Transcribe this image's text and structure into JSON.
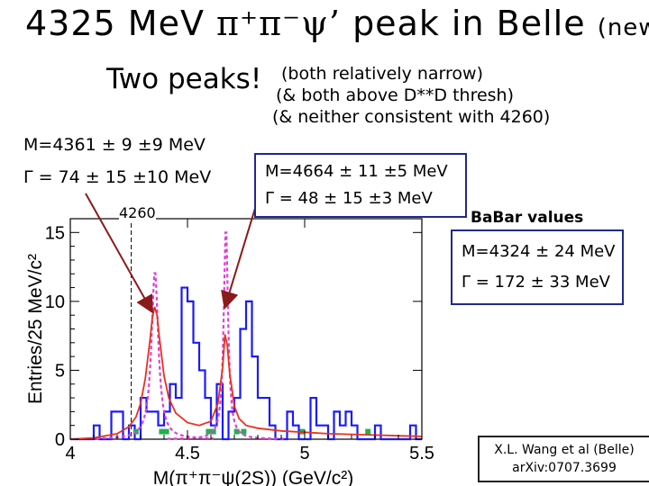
{
  "slide": {
    "title_a": "4325 MeV ",
    "title_sym": "π⁺π⁻ψ’",
    "title_b": " peak in Belle ",
    "title_new": "(new)",
    "headline": "Two peaks!",
    "notes": [
      "(both relatively narrow)",
      "(& both above D**D thresh)",
      "(& neither consistent with 4260)"
    ],
    "peak1_mass": "M=4361 ± 9 ±9 MeV",
    "peak1_width": "Γ = 74 ± 15 ±10  MeV",
    "peak2_mass": "M=4664 ± 11 ±5 MeV",
    "peak2_width": "Γ = 48 ± 15 ±3  MeV",
    "babar_title": "BaBar values",
    "babar_mass": "M=4324 ± 24 MeV",
    "babar_width": "Γ = 172 ± 33 MeV",
    "marker_4260": "4260",
    "citation_1": "X.L. Wang et al (Belle)",
    "citation_2": "arXiv:0707.3699"
  },
  "colors": {
    "box_border": "#1f2a8a",
    "histogram": "#1a1aff",
    "fit": "#e8321e",
    "peaks_dashed": "#e040d8",
    "background": "#22b14c",
    "arrows": "#8b1a1a"
  },
  "chart_data": {
    "type": "line",
    "xlabel": "M(π⁺π⁻ψ(2S)) (GeV/c²)",
    "ylabel": "Entries/25 MeV/c²",
    "xlim": [
      4.0,
      5.5
    ],
    "ylim": [
      0,
      16
    ],
    "xticks": [
      "4",
      "4.5",
      "5",
      "5.5"
    ],
    "yticks": [
      "0",
      "5",
      "10",
      "15"
    ],
    "bin_width": 0.025,
    "histogram": {
      "bin_edges_start": 4.0,
      "counts": [
        0,
        0,
        0,
        0,
        1,
        0,
        0,
        2,
        2,
        0,
        1,
        0,
        3,
        2,
        2,
        1,
        2,
        4,
        3,
        11,
        10,
        7,
        5,
        3,
        1,
        4,
        0,
        2,
        3,
        8,
        10,
        6,
        3,
        3,
        1,
        0,
        0,
        2,
        1,
        0,
        0,
        3,
        1,
        1,
        0,
        2,
        1,
        2,
        1,
        0,
        0,
        0,
        1,
        0,
        0,
        0,
        0,
        0,
        1,
        0
      ]
    },
    "fit_curve": {
      "x": [
        4.0,
        4.1,
        4.2,
        4.25,
        4.28,
        4.3,
        4.32,
        4.34,
        4.35,
        4.36,
        4.37,
        4.38,
        4.4,
        4.42,
        4.45,
        4.5,
        4.55,
        4.6,
        4.63,
        4.65,
        4.66,
        4.67,
        4.68,
        4.7,
        4.72,
        4.75,
        4.8,
        4.9,
        5.0,
        5.1,
        5.2,
        5.3,
        5.4,
        5.5
      ],
      "y": [
        0,
        0.1,
        0.4,
        0.9,
        1.6,
        2.6,
        4.4,
        7.2,
        8.8,
        9.6,
        9.0,
        7.4,
        4.6,
        3.0,
        1.9,
        1.2,
        1.0,
        1.3,
        2.6,
        5.2,
        7.6,
        6.8,
        4.8,
        2.4,
        1.5,
        1.0,
        0.8,
        0.6,
        0.5,
        0.4,
        0.35,
        0.3,
        0.25,
        0.2
      ]
    },
    "peak_curves_dashed": [
      {
        "center": 4.361,
        "peak": 12.2
      },
      {
        "center": 4.664,
        "peak": 15.5
      }
    ],
    "marker_4260_x": 4.26
  }
}
